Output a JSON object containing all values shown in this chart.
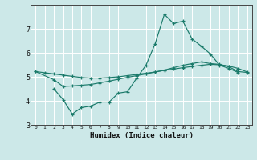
{
  "xlabel": "Humidex (Indice chaleur)",
  "bg_color": "#cce8e8",
  "grid_color": "#ffffff",
  "line_color": "#1a7a6a",
  "xlim": [
    -0.5,
    23.5
  ],
  "ylim": [
    3,
    8
  ],
  "yticks": [
    3,
    4,
    5,
    6,
    7
  ],
  "xticks": [
    0,
    1,
    2,
    3,
    4,
    5,
    6,
    7,
    8,
    9,
    10,
    11,
    12,
    13,
    14,
    15,
    16,
    17,
    18,
    19,
    20,
    21,
    22,
    23
  ],
  "line1_x": [
    0,
    1,
    2,
    3,
    4,
    5,
    6,
    7,
    8,
    9,
    10,
    11,
    12,
    13,
    14,
    15,
    16,
    17,
    18,
    19,
    20,
    21,
    22,
    23
  ],
  "line1_y": [
    5.22,
    5.17,
    5.12,
    5.07,
    5.02,
    4.97,
    4.95,
    4.95,
    4.97,
    5.0,
    5.05,
    5.1,
    5.15,
    5.2,
    5.27,
    5.32,
    5.38,
    5.43,
    5.48,
    5.52,
    5.5,
    5.45,
    5.35,
    5.2
  ],
  "line2_x": [
    0,
    2,
    3,
    4,
    5,
    6,
    7,
    8,
    9,
    10,
    11,
    12,
    13,
    14,
    15,
    16,
    17,
    18,
    19,
    20,
    21,
    22,
    23
  ],
  "line2_y": [
    5.22,
    4.88,
    4.6,
    4.62,
    4.65,
    4.68,
    4.75,
    4.82,
    4.9,
    4.98,
    5.05,
    5.12,
    5.2,
    5.28,
    5.38,
    5.48,
    5.55,
    5.62,
    5.55,
    5.52,
    5.42,
    5.22,
    5.18
  ],
  "line3_x": [
    2,
    3,
    4,
    5,
    6,
    7,
    8,
    9,
    10,
    11,
    12,
    13,
    14,
    15,
    16,
    17,
    18,
    19,
    20,
    21,
    22
  ],
  "line3_y": [
    4.5,
    4.05,
    3.45,
    3.72,
    3.78,
    3.95,
    3.95,
    4.32,
    4.38,
    4.95,
    5.48,
    6.38,
    7.6,
    7.22,
    7.32,
    6.58,
    6.28,
    5.95,
    5.48,
    5.35,
    5.18
  ]
}
